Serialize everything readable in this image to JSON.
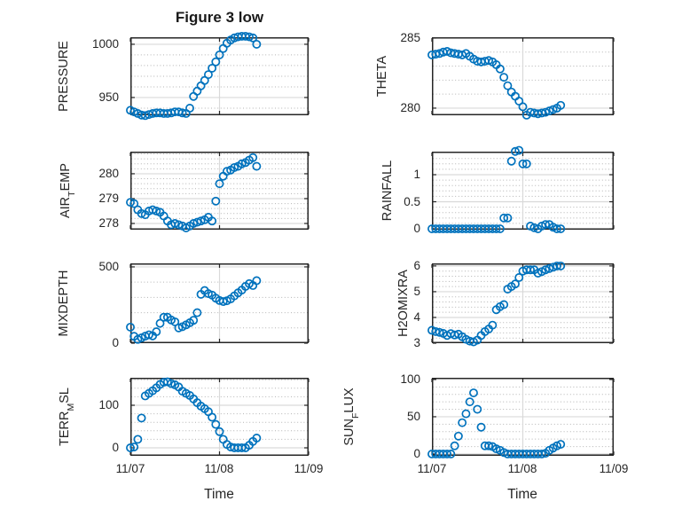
{
  "figure": {
    "title": "Figure 3 low"
  },
  "colors": {
    "marker": "#0072BD",
    "axis": "#262626",
    "text": "#262626",
    "grid_major": "#d9d9d9",
    "grid_minor": "#b3b3b3",
    "background": "#ffffff"
  },
  "chart_data": {
    "type": "scatter",
    "title": "Figure 3 low",
    "layout": "4x2 subplots, open-circle markers, solid major grid, dotted horizontal minor grid",
    "marker": {
      "shape": "open-circle",
      "color": "#0072BD"
    },
    "x_axis": {
      "label": "Time",
      "lim_hours": [
        0,
        48
      ],
      "ticks_hours": [
        0,
        24,
        48
      ],
      "tick_labels": [
        "11/07",
        "11/08",
        "11/09"
      ]
    },
    "x_hours": [
      0,
      1,
      2,
      3,
      4,
      5,
      6,
      7,
      8,
      9,
      10,
      11,
      12,
      13,
      14,
      15,
      16,
      17,
      18,
      19,
      20,
      21,
      22,
      23,
      24,
      25,
      26,
      27,
      28,
      29,
      30,
      31,
      32,
      33,
      34
    ],
    "charts": [
      {
        "name": "PRESSURE",
        "ylabel_segments": [
          {
            "text": "PRESSURE",
            "sub": false
          }
        ],
        "ylim": [
          933.3,
          1006.6
        ],
        "yticks": [
          950,
          1000
        ],
        "ytick_labels": [
          "950",
          "1000"
        ],
        "minor_yticks": [
          940,
          960,
          970,
          980,
          990
        ],
        "values": [
          938,
          936.5,
          935,
          933.5,
          933,
          934,
          935,
          935.5,
          935.5,
          935,
          935,
          935.5,
          936.5,
          936.5,
          935.5,
          935,
          940,
          951,
          956,
          961,
          966,
          971.5,
          977.5,
          983.5,
          990,
          996,
          1001,
          1004,
          1006,
          1007,
          1007.5,
          1007.5,
          1007,
          1006,
          1000
        ]
      },
      {
        "name": "THETA",
        "ylabel_segments": [
          {
            "text": "THETA",
            "sub": false
          }
        ],
        "ylim": [
          279.49,
          285.06
        ],
        "yticks": [
          280,
          285
        ],
        "ytick_labels": [
          "280",
          "285"
        ],
        "minor_yticks": [
          281,
          282,
          283,
          284
        ],
        "values": [
          283.8,
          283.85,
          283.9,
          284.0,
          284.05,
          283.95,
          283.9,
          283.85,
          283.8,
          283.9,
          283.7,
          283.5,
          283.35,
          283.3,
          283.35,
          283.4,
          283.3,
          283.1,
          282.8,
          282.2,
          281.6,
          281.15,
          280.85,
          280.5,
          280.1,
          279.5,
          279.7,
          279.65,
          279.6,
          279.65,
          279.7,
          279.8,
          279.9,
          280.0,
          280.2
        ]
      },
      {
        "name": "AIR_TEMP",
        "ylabel_segments": [
          {
            "text": "AIR",
            "sub": false
          },
          {
            "text": "T",
            "sub": true
          },
          {
            "text": "EMP",
            "sub": false
          }
        ],
        "ylim": [
          277.75,
          280.89
        ],
        "yticks": [
          278,
          279,
          280
        ],
        "ytick_labels": [
          "278",
          "279",
          "280"
        ],
        "minor_yticks": [
          277.8,
          278.2,
          278.4,
          278.6,
          278.8,
          279.2,
          279.4,
          279.6,
          279.8,
          280.2,
          280.4,
          280.6,
          280.8
        ],
        "values": [
          278.85,
          278.8,
          278.55,
          278.4,
          278.35,
          278.5,
          278.55,
          278.5,
          278.45,
          278.3,
          278.1,
          277.95,
          278.0,
          277.95,
          277.9,
          277.82,
          277.9,
          278.0,
          278.05,
          278.1,
          278.15,
          278.25,
          278.1,
          278.9,
          279.6,
          279.9,
          280.1,
          280.15,
          280.25,
          280.3,
          280.4,
          280.45,
          280.55,
          280.65,
          280.3
        ]
      },
      {
        "name": "RAINFALL",
        "ylabel_segments": [
          {
            "text": "RAINFALL",
            "sub": false
          }
        ],
        "ylim": [
          -0.016,
          1.426
        ],
        "yticks": [
          0,
          0.5,
          1
        ],
        "ytick_labels": [
          "0",
          "0.5",
          "1"
        ],
        "minor_yticks": [
          0.1,
          0.2,
          0.3,
          0.4,
          0.6,
          0.7,
          0.8,
          0.9,
          1.1,
          1.2,
          1.3,
          1.4
        ],
        "values": [
          0,
          0,
          0,
          0,
          0,
          0,
          0,
          0,
          0,
          0,
          0,
          0,
          0,
          0,
          0,
          0,
          0,
          0,
          0,
          0.2,
          0.2,
          1.25,
          1.43,
          1.45,
          1.2,
          1.2,
          0.05,
          0.02,
          0,
          0.05,
          0.08,
          0.08,
          0.03,
          0,
          0
        ]
      },
      {
        "name": "MIXDEPTH",
        "ylabel_segments": [
          {
            "text": "MIXDEPTH",
            "sub": false
          }
        ],
        "ylim": [
          0,
          523
        ],
        "yticks": [
          0,
          500
        ],
        "ytick_labels": [
          "0",
          "500"
        ],
        "minor_yticks": [
          100,
          200,
          300,
          400
        ],
        "values": [
          105,
          45,
          25,
          35,
          46,
          55,
          48,
          75,
          130,
          170,
          170,
          152,
          140,
          100,
          108,
          120,
          134,
          150,
          200,
          320,
          345,
          325,
          315,
          295,
          280,
          273,
          278,
          290,
          310,
          330,
          348,
          372,
          390,
          378,
          410
        ]
      },
      {
        "name": "H2OMIXRA",
        "ylabel_segments": [
          {
            "text": "H2OMIXRA",
            "sub": false
          }
        ],
        "ylim": [
          3,
          6.1
        ],
        "yticks": [
          3,
          4,
          5,
          6
        ],
        "ytick_labels": [
          "3",
          "4",
          "5",
          "6"
        ],
        "minor_yticks": [
          3.2,
          3.4,
          3.6,
          3.8,
          4.2,
          4.4,
          4.6,
          4.8,
          5.2,
          5.4,
          5.6,
          5.8
        ],
        "values": [
          3.5,
          3.45,
          3.42,
          3.38,
          3.3,
          3.37,
          3.32,
          3.35,
          3.25,
          3.15,
          3.08,
          3.05,
          3.12,
          3.3,
          3.45,
          3.55,
          3.7,
          4.3,
          4.42,
          4.5,
          5.1,
          5.2,
          5.3,
          5.55,
          5.8,
          5.85,
          5.85,
          5.85,
          5.72,
          5.78,
          5.85,
          5.9,
          5.95,
          6.0,
          6.0
        ]
      },
      {
        "name": "TERR_MSL",
        "ylabel_segments": [
          {
            "text": "TERR",
            "sub": false
          },
          {
            "text": "M",
            "sub": true
          },
          {
            "text": "SL",
            "sub": false
          }
        ],
        "ylim": [
          -18.75,
          164.6
        ],
        "yticks": [
          0,
          100
        ],
        "ytick_labels": [
          "0",
          "100"
        ],
        "minor_yticks": [
          20,
          40,
          60,
          80,
          120,
          140,
          160
        ],
        "values": [
          0,
          2,
          20,
          70,
          122,
          128,
          134,
          141,
          149,
          154,
          155,
          151,
          148,
          143,
          133,
          128,
          123,
          115,
          106,
          98,
          92,
          85,
          72,
          55,
          38,
          20,
          8,
          2,
          0,
          0,
          0,
          0,
          6,
          15,
          23
        ]
      },
      {
        "name": "SUN_FLUX",
        "ylabel_segments": [
          {
            "text": "SUN",
            "sub": false
          },
          {
            "text": "F",
            "sub": true
          },
          {
            "text": "LUX",
            "sub": false
          }
        ],
        "ylim": [
          -2.4,
          102.3
        ],
        "yticks": [
          0,
          50,
          100
        ],
        "ytick_labels": [
          "0",
          "50",
          "100"
        ],
        "minor_yticks": [
          10,
          20,
          30,
          40,
          60,
          70,
          80,
          90
        ],
        "values": [
          0,
          0,
          0,
          0,
          0,
          0,
          11,
          24,
          42,
          54,
          70,
          82,
          60,
          36,
          11,
          11,
          10,
          7,
          5,
          2,
          0,
          0,
          0,
          0,
          0,
          0,
          0,
          0,
          0,
          0,
          1,
          5,
          8,
          11,
          13
        ]
      }
    ]
  }
}
